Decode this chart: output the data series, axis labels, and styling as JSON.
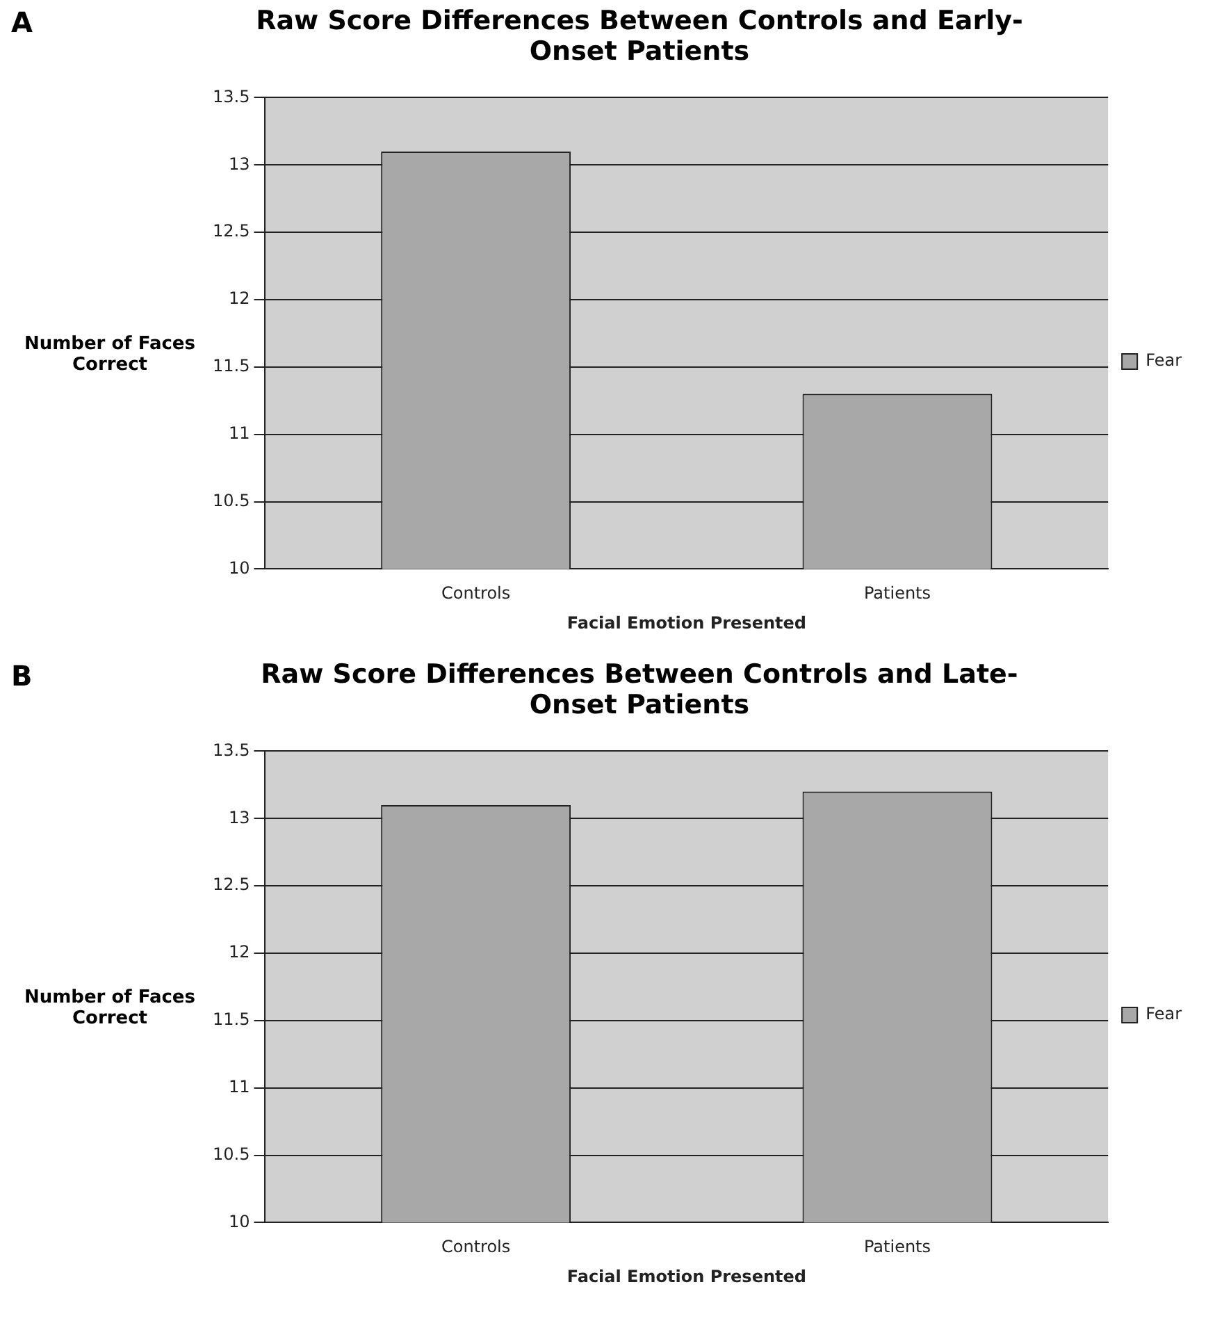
{
  "chart_data": [
    {
      "type": "bar",
      "title": "Raw Score Differences Between Controls and Early-Onset Patients",
      "annotations": [
        "A"
      ],
      "xlabel": "Facial Emotion Presented",
      "ylabel": "Number of Faces Correct",
      "categories": [
        "Controls",
        "Patients"
      ],
      "series": [
        {
          "name": "Fear",
          "color": "#a8a8a8",
          "values": [
            13.1,
            11.3
          ]
        }
      ],
      "ylim": [
        10,
        13.5
      ],
      "yticks": [
        10,
        10.5,
        11,
        11.5,
        12,
        12.5,
        13,
        13.5
      ],
      "grid": "y",
      "legend": "right"
    },
    {
      "type": "bar",
      "title": "Raw Score Differences Between Controls and Late-Onset Patients",
      "annotations": [
        "B"
      ],
      "xlabel": "Facial Emotion Presented",
      "ylabel": "Number of Faces Correct",
      "categories": [
        "Controls",
        "Patients"
      ],
      "series": [
        {
          "name": "Fear",
          "color": "#a8a8a8",
          "values": [
            13.1,
            13.2
          ]
        }
      ],
      "ylim": [
        10,
        13.5
      ],
      "yticks": [
        10,
        10.5,
        11,
        11.5,
        12,
        12.5,
        13,
        13.5
      ],
      "grid": "y",
      "legend": "right"
    }
  ]
}
